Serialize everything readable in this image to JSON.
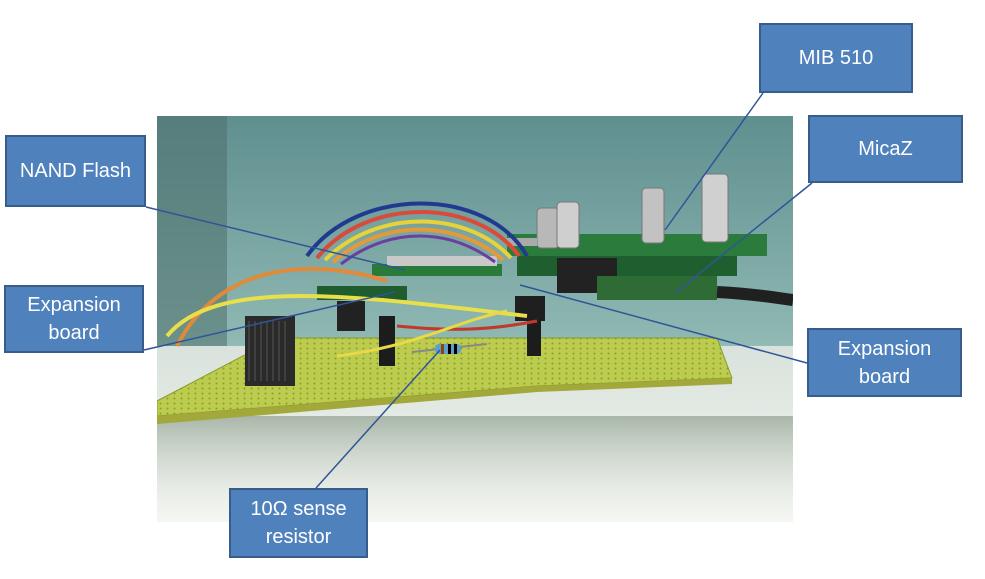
{
  "figure": {
    "photo_description_icon": "circuit-board-photo",
    "callouts": {
      "nand_flash": "NAND Flash",
      "expansion_board_left": "Expansion\nboard",
      "mib_510": "MIB 510",
      "micaz": "MicaZ",
      "expansion_board_right": "Expansion\nboard",
      "sense_resistor": "10Ω sense\nresistor"
    },
    "colors": {
      "callout_fill": "#4f81bd",
      "callout_border": "#385d8a",
      "leader_line": "#2f5597",
      "pcb_green": "#b9c94a"
    }
  }
}
